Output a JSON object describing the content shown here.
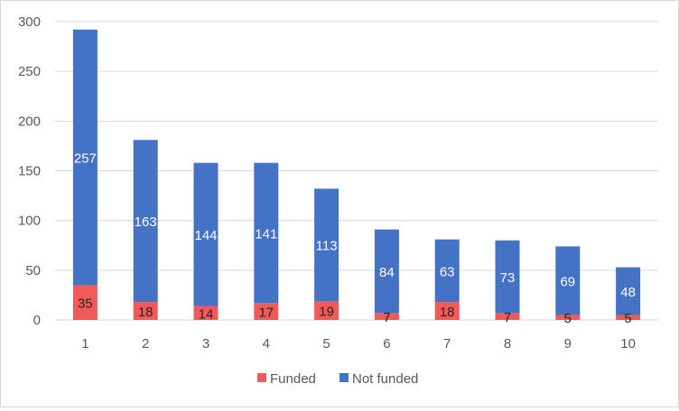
{
  "chart_data": {
    "type": "bar",
    "stacked": true,
    "categories": [
      "1",
      "2",
      "3",
      "4",
      "5",
      "6",
      "7",
      "8",
      "9",
      "10"
    ],
    "series": [
      {
        "name": "Funded",
        "color": "#f25a5a",
        "label_color": "#262626",
        "values": [
          35,
          18,
          14,
          17,
          19,
          7,
          18,
          7,
          5,
          5
        ]
      },
      {
        "name": "Not funded",
        "color": "#4472c4",
        "label_color": "#ffffff",
        "values": [
          257,
          163,
          144,
          141,
          113,
          84,
          63,
          73,
          69,
          48
        ]
      }
    ],
    "ylim": [
      0,
      300
    ],
    "yticks": [
      0,
      50,
      100,
      150,
      200,
      250,
      300
    ],
    "grid": true,
    "legend_position": "bottom"
  }
}
